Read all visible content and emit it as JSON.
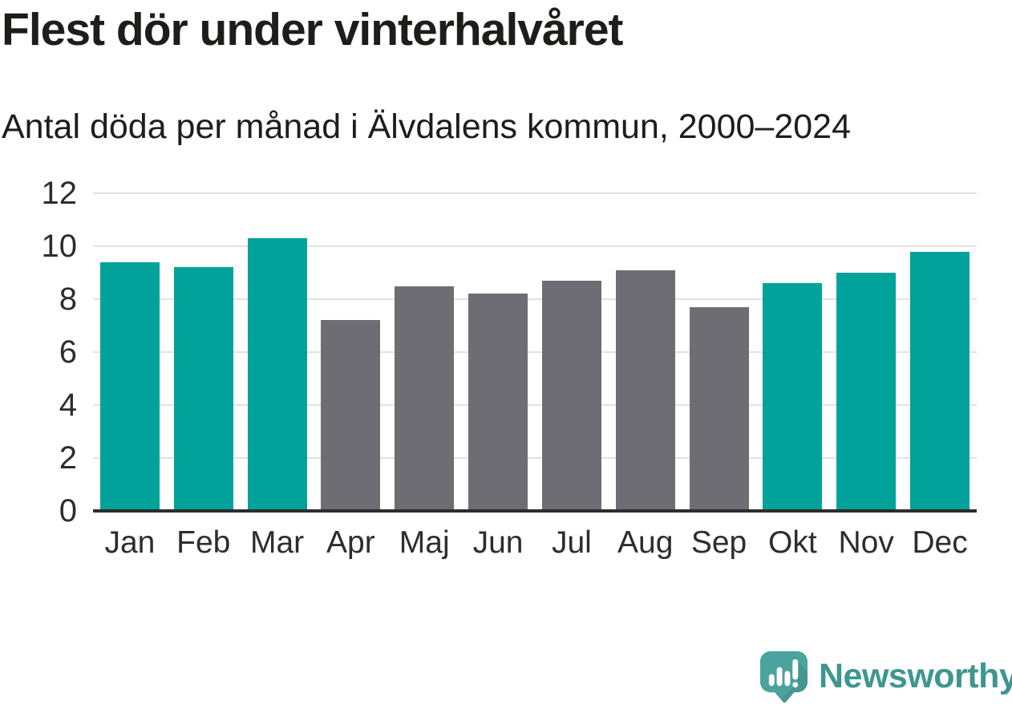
{
  "chart_data": {
    "type": "bar",
    "title": "Flest dör under vinterhalvåret",
    "subtitle": "Antal döda per månad i Älvdalens kommun, 2000–2024",
    "categories": [
      "Jan",
      "Feb",
      "Mar",
      "Apr",
      "Maj",
      "Jun",
      "Jul",
      "Aug",
      "Sep",
      "Okt",
      "Nov",
      "Dec"
    ],
    "values": [
      9.4,
      9.2,
      10.3,
      7.2,
      8.5,
      8.2,
      8.7,
      9.1,
      7.7,
      8.6,
      9.0,
      9.8
    ],
    "bar_color_keys": [
      "teal",
      "teal",
      "teal",
      "gray",
      "gray",
      "gray",
      "gray",
      "gray",
      "gray",
      "teal",
      "teal",
      "teal"
    ],
    "colors": {
      "teal": "#00a29a",
      "gray": "#6e6d73"
    },
    "xlabel": "",
    "ylabel": "",
    "ylim": [
      0,
      12
    ],
    "yticks": [
      0,
      2,
      4,
      6,
      8,
      10,
      12
    ],
    "grid": "horizontal-only",
    "legend": "none",
    "gridline_color": "#e2e2e2",
    "axis_line_color": "#2d2d2d",
    "tick_label_color": "#2d2d2d"
  },
  "footer": {
    "brand": "Newsworthy",
    "brand_color": "#3f968f",
    "logo_icon": "newsworthy-speech-bubble-bar-chart-icon",
    "logo_color": "#4aa39c"
  }
}
